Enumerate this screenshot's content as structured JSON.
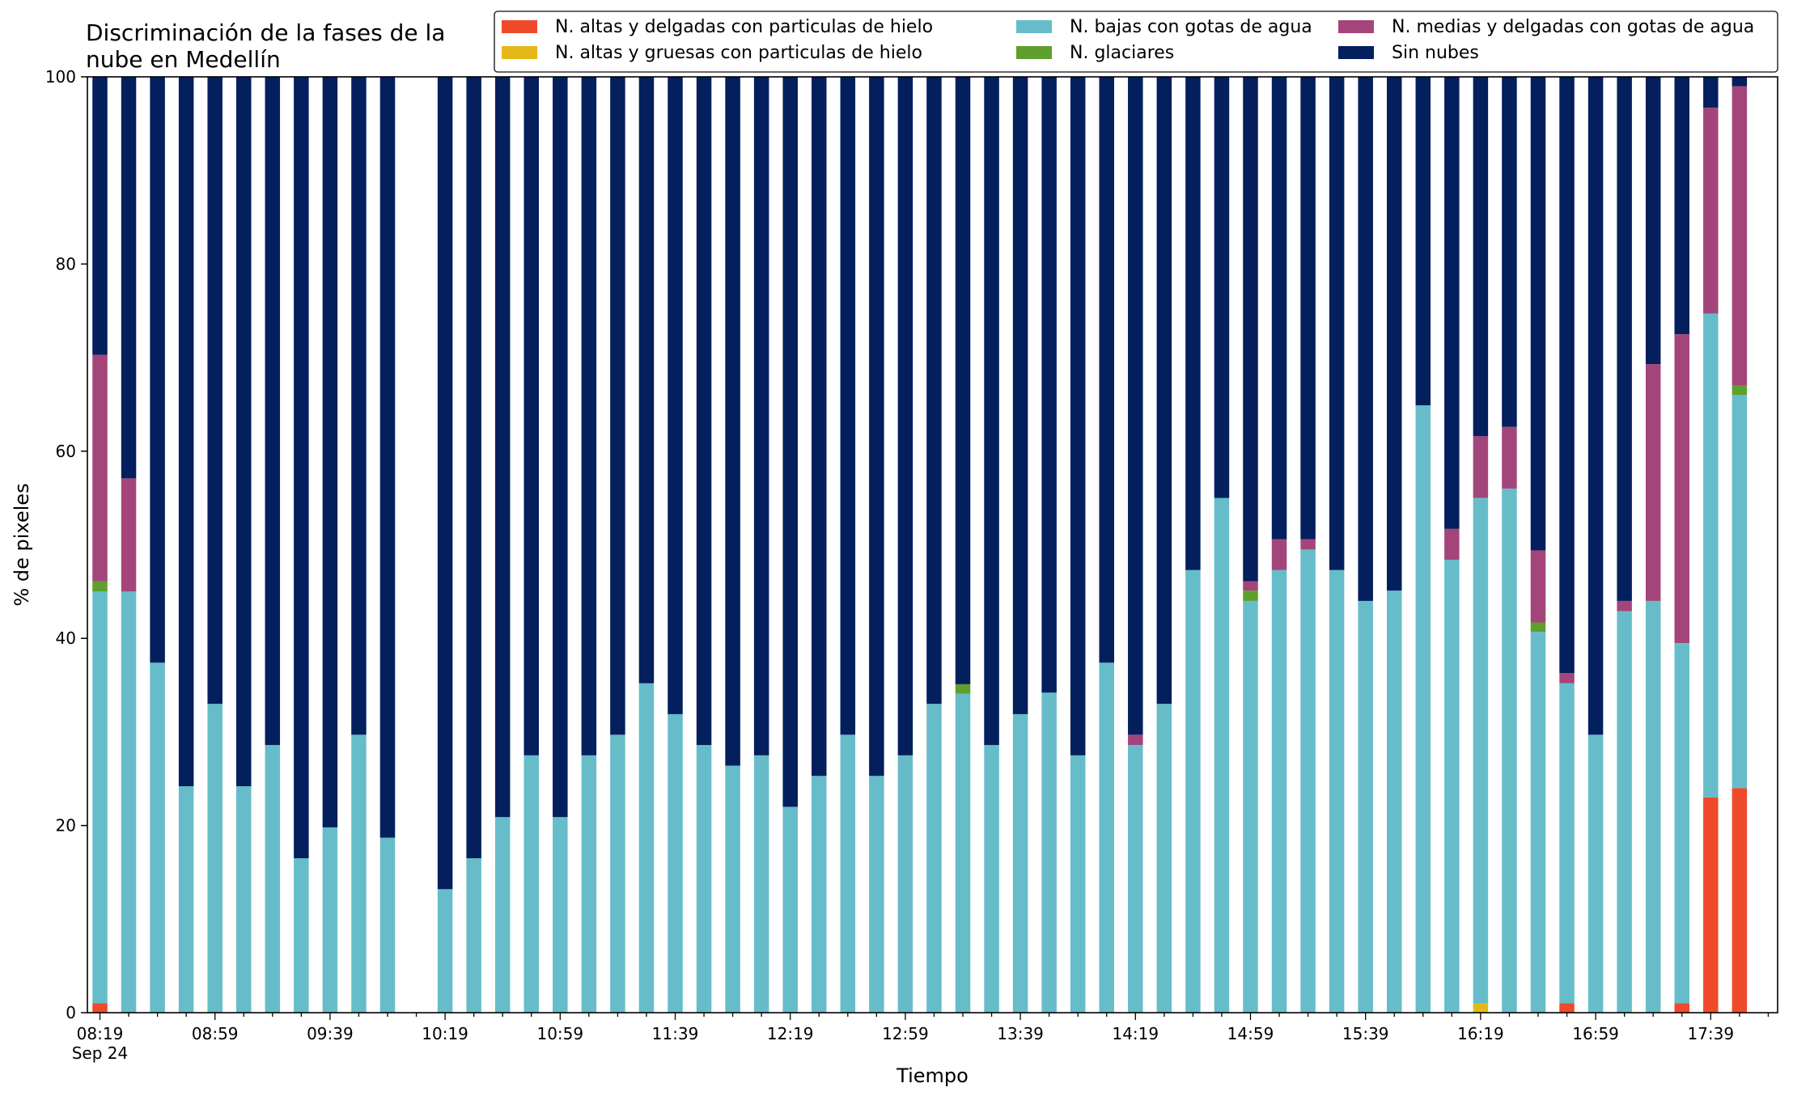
{
  "chart_data": {
    "type": "bar",
    "stacked": true,
    "title": "Discriminación de la fases de la\nnube en Medellín",
    "xlabel": "Tiempo",
    "ylabel": "% de pixeles",
    "ylim": [
      0,
      100
    ],
    "yticks": [
      0,
      20,
      40,
      60,
      80,
      100
    ],
    "xtick_labels": [
      "08:19\nSep 24",
      "08:59",
      "09:39",
      "10:19",
      "10:59",
      "11:39",
      "12:19",
      "12:59",
      "13:39",
      "14:19",
      "14:59",
      "15:39",
      "16:19",
      "16:59",
      "17:39"
    ],
    "xtick_index": [
      0,
      4,
      8,
      12,
      16,
      20,
      24,
      28,
      32,
      36,
      40,
      44,
      48,
      52,
      56
    ],
    "grid": false,
    "legend_position": "top-right",
    "legend_columns": 3,
    "legend_order": [
      0,
      1,
      2,
      3,
      4,
      5
    ],
    "categories": [
      "08:19",
      "08:29",
      "08:39",
      "08:49",
      "08:59",
      "09:09",
      "09:19",
      "09:29",
      "09:39",
      "09:49",
      "09:59",
      "10:09",
      "10:19",
      "10:29",
      "10:39",
      "10:49",
      "10:59",
      "11:09",
      "11:19",
      "11:29",
      "11:39",
      "11:49",
      "11:59",
      "12:09",
      "12:19",
      "12:29",
      "12:39",
      "12:49",
      "12:59",
      "13:09",
      "13:19",
      "13:29",
      "13:39",
      "13:49",
      "13:59",
      "14:09",
      "14:19",
      "14:29",
      "14:39",
      "14:49",
      "14:59",
      "15:09",
      "15:19",
      "15:29",
      "15:39",
      "15:49",
      "15:59",
      "16:09",
      "16:19",
      "16:29",
      "16:39",
      "16:49",
      "16:59",
      "17:09",
      "17:19",
      "17:29",
      "17:39",
      "17:49"
    ],
    "series": [
      {
        "name": "N. altas y delgadas con particulas de hielo",
        "color": "#ee4a2b",
        "values": [
          1,
          0,
          0,
          0,
          0,
          0,
          0,
          0,
          0,
          0,
          0,
          0,
          0,
          0,
          0,
          0,
          0,
          0,
          0,
          0,
          0,
          0,
          0,
          0,
          0,
          0,
          0,
          0,
          0,
          0,
          0,
          0,
          0,
          0,
          0,
          0,
          0,
          0,
          0,
          0,
          0,
          0,
          0,
          0,
          0,
          0,
          0,
          0,
          0,
          0,
          0,
          1,
          0,
          0,
          0,
          1,
          23,
          24
        ]
      },
      {
        "name": "N. altas y gruesas con particulas de hielo",
        "color": "#e3b919",
        "values": [
          0,
          0,
          0,
          0,
          0,
          0,
          0,
          0,
          0,
          0,
          0,
          0,
          0,
          0,
          0,
          0,
          0,
          0,
          0,
          0,
          0,
          0,
          0,
          0,
          0,
          0,
          0,
          0,
          0,
          0,
          0,
          0,
          0,
          0,
          0,
          0,
          0,
          0,
          0,
          0,
          0,
          0,
          0,
          0,
          0,
          0,
          0,
          0,
          1,
          0,
          0,
          0,
          0,
          0,
          0,
          0,
          0,
          0
        ]
      },
      {
        "name": "N. bajas con gotas de agua",
        "color": "#66bdc9",
        "values": [
          44,
          45,
          37.4,
          24.2,
          33,
          24.2,
          28.6,
          16.5,
          19.8,
          29.7,
          18.7,
          0,
          13.2,
          16.5,
          20.9,
          27.5,
          20.9,
          27.5,
          29.7,
          35.2,
          31.9,
          28.6,
          26.4,
          27.5,
          22,
          25.3,
          29.7,
          25.3,
          27.5,
          33,
          34.1,
          28.6,
          31.9,
          34.2,
          27.5,
          37.4,
          28.6,
          33,
          47.3,
          55,
          44,
          47.3,
          49.5,
          47.3,
          44,
          45.1,
          64.9,
          48.4,
          54,
          56,
          40.7,
          34.2,
          29.7,
          42.9,
          44,
          38.5,
          51.7,
          42
        ]
      },
      {
        "name": "N. glaciares",
        "color": "#5e9f2d",
        "values": [
          1.1,
          0,
          0,
          0,
          0,
          0,
          0,
          0,
          0,
          0,
          0,
          0,
          0,
          0,
          0,
          0,
          0,
          0,
          0,
          0,
          0,
          0,
          0,
          0,
          0,
          0,
          0,
          0,
          0,
          0,
          1,
          0,
          0,
          0,
          0,
          0,
          0,
          0,
          0,
          0,
          1.1,
          0,
          0,
          0,
          0,
          0,
          0,
          0,
          0,
          0,
          1,
          0,
          0,
          0,
          0,
          0,
          0,
          1
        ]
      },
      {
        "name": "N. medias y delgadas con gotas de agua",
        "color": "#a3457b",
        "values": [
          24.2,
          12.1,
          0,
          0,
          0,
          0,
          0,
          0,
          0,
          0,
          0,
          0,
          0,
          0,
          0,
          0,
          0,
          0,
          0,
          0,
          0,
          0,
          0,
          0,
          0,
          0,
          0,
          0,
          0,
          0,
          0,
          0,
          0,
          0,
          0,
          0,
          1.1,
          0,
          0,
          0,
          1,
          3.3,
          1.1,
          0,
          0,
          0,
          0,
          3.3,
          6.6,
          6.6,
          7.7,
          1.1,
          0,
          1.1,
          25.3,
          33,
          22,
          32
        ]
      },
      {
        "name": "Sin nubes",
        "color": "#031f5d",
        "values": [
          29.7,
          42.9,
          62.6,
          75.8,
          67,
          75.8,
          71.4,
          83.5,
          80.2,
          70.3,
          81.3,
          0,
          86.8,
          83.5,
          79.1,
          72.5,
          79.1,
          72.5,
          70.3,
          64.8,
          68.1,
          71.4,
          73.6,
          72.5,
          78,
          74.7,
          70.3,
          74.7,
          72.5,
          67,
          64.9,
          71.4,
          68.1,
          65.8,
          72.5,
          62.6,
          70.3,
          67,
          52.7,
          45,
          53.9,
          49.4,
          49.4,
          52.7,
          56,
          54.9,
          35.1,
          48.3,
          38.4,
          37.4,
          50.6,
          63.7,
          70.3,
          56,
          30.7,
          27.5,
          3.3,
          1
        ]
      }
    ]
  }
}
